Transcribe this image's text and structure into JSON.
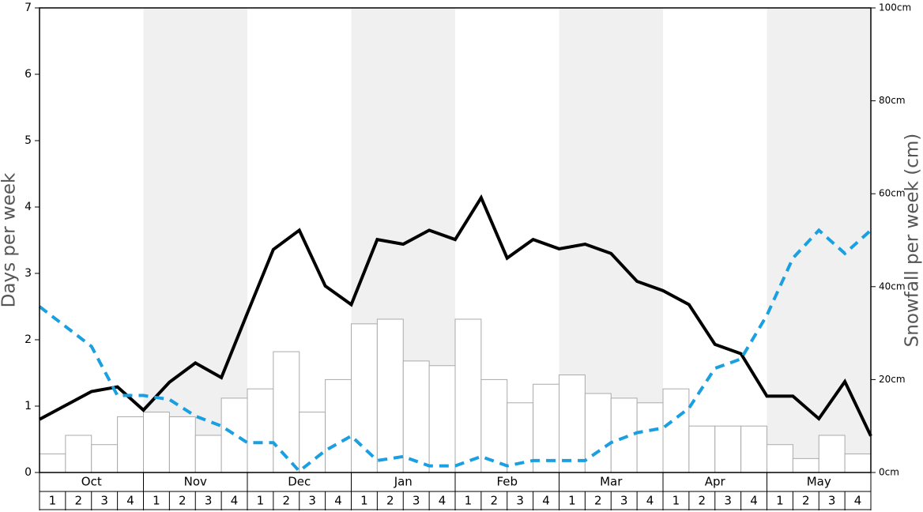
{
  "chart_data": {
    "type": "combo",
    "y_label": "Days per week",
    "y2_label": "Snowfall per week (cm)",
    "months": [
      "Oct",
      "Nov",
      "Dec",
      "Jan",
      "Feb",
      "Mar",
      "Apr",
      "May"
    ],
    "weeks": [
      "1",
      "2",
      "3",
      "4"
    ],
    "ylim": [
      0,
      7
    ],
    "yticks": [
      0,
      1,
      2,
      3,
      4,
      5,
      6,
      7
    ],
    "y2lim": [
      0,
      100
    ],
    "y2ticks": [
      {
        "value": 0,
        "label": "0cm"
      },
      {
        "value": 20,
        "label": "20cm"
      },
      {
        "value": 40,
        "label": "40cm"
      },
      {
        "value": 60,
        "label": "60cm"
      },
      {
        "value": 80,
        "label": "80cm"
      },
      {
        "value": 100,
        "label": "100cm"
      }
    ],
    "shade_color": "#f0f0f0",
    "series": [
      {
        "type": "bar",
        "axis": "y2",
        "color": "#ffffff",
        "edge_color": "#aaaaaa",
        "values": [
          4,
          8,
          6,
          12,
          13,
          12,
          8,
          16,
          18,
          26,
          13,
          20,
          32,
          33,
          24,
          23,
          33,
          20,
          15,
          19,
          21,
          17,
          16,
          15,
          18,
          10,
          10,
          10,
          6,
          3,
          8,
          4
        ]
      },
      {
        "type": "line",
        "color": "#000000",
        "dashed": false,
        "values": [
          0.8,
          1.01,
          1.22,
          1.29,
          0.94,
          1.36,
          1.65,
          1.43,
          2.4,
          3.36,
          3.65,
          2.81,
          2.53,
          3.51,
          3.44,
          3.65,
          3.51,
          4.14,
          3.23,
          3.51,
          3.37,
          3.44,
          3.3,
          2.88,
          2.74,
          2.53,
          1.93,
          1.79,
          1.15,
          1.15,
          0.81,
          1.37,
          0.55
        ]
      },
      {
        "type": "line",
        "color": "#1a9fe0",
        "dashed": true,
        "values": [
          2.5,
          2.2,
          1.9,
          1.16,
          1.16,
          1.1,
          0.85,
          0.7,
          0.45,
          0.45,
          0.02,
          0.33,
          0.55,
          0.18,
          0.24,
          0.1,
          0.1,
          0.24,
          0.1,
          0.18,
          0.18,
          0.18,
          0.45,
          0.6,
          0.67,
          0.97,
          1.57,
          1.71,
          2.37,
          3.23,
          3.65,
          3.3,
          3.65
        ]
      }
    ]
  }
}
